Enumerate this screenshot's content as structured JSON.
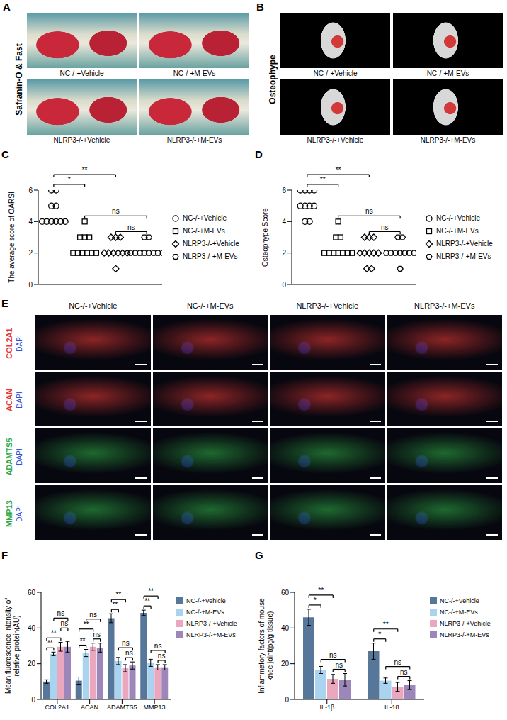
{
  "panels": [
    {
      "panel": "A",
      "title": "Safranin-O & Fast",
      "labels": [
        "NC-/-+Vehicle",
        "NC-/-+M-EVs",
        "NLRP3-/-+Vehicle",
        "NLRP3-/-+M-EVs"
      ]
    },
    {
      "panel": "B",
      "title": "Osteophype",
      "labels": [
        "NC-/-+Vehicle",
        "NC-/-+M-EVs",
        "NLRP3-/-+Vehicle",
        "NLRP3-/-+M-EVs"
      ]
    },
    {
      "panel": "E",
      "columns": [
        "NC-/-+Vehicle",
        "NC-/-+M-EVs",
        "NLRP3-/-+Vehicle",
        "NLRP3-/-+M-EVs"
      ],
      "row_sublabel": "DAPI",
      "rows": [
        {
          "label": "COL2A1",
          "color": "#e53935"
        },
        {
          "label": "ACAN",
          "color": "#e53935"
        },
        {
          "label": "ADAMTS5",
          "color": "#2eaa44"
        },
        {
          "label": "MMP13",
          "color": "#2eaa44"
        }
      ]
    }
  ],
  "chart_data": [
    {
      "panel": "C",
      "type": "scatter",
      "y_label": "The average score of OARSI",
      "ylim": [
        0,
        6
      ],
      "yticks": [
        0,
        2,
        4,
        6
      ],
      "tick_labels": "y",
      "legend": "right",
      "series": [
        {
          "name": "NC-/-+Vehicle",
          "marker": "circle",
          "color": "#000000",
          "values": [
            6,
            6,
            5,
            5,
            4,
            4,
            4,
            4,
            4,
            4
          ]
        },
        {
          "name": "NC-/-+M-EVs",
          "marker": "square",
          "color": "#000000",
          "values": [
            4,
            3,
            3,
            3,
            2,
            2,
            2,
            2,
            2,
            2
          ]
        },
        {
          "name": "NLRP3-/-+Vehicle",
          "marker": "diamond",
          "color": "#000000",
          "values": [
            3,
            3,
            3,
            2,
            2,
            2,
            2,
            2,
            2,
            1
          ]
        },
        {
          "name": "NLRP3-/-+M-EVs",
          "marker": "hexagon",
          "color": "#000000",
          "values": [
            3,
            3,
            2,
            2,
            2,
            2,
            2,
            2,
            2,
            2
          ]
        }
      ],
      "annotations": [
        {
          "text": "*",
          "between": [
            "NC-/-+Vehicle",
            "NC-/-+M-EVs"
          ]
        },
        {
          "text": "**",
          "between": [
            "NC-/-+Vehicle",
            "NLRP3-/-+Vehicle"
          ]
        },
        {
          "text": "ns",
          "between": [
            "NC-/-+M-EVs",
            "NLRP3-/-+M-EVs"
          ]
        },
        {
          "text": "ns",
          "between": [
            "NLRP3-/-+Vehicle",
            "NLRP3-/-+M-EVs"
          ]
        }
      ]
    },
    {
      "panel": "D",
      "type": "scatter",
      "y_label": "Osteophype Score",
      "ylim": [
        0,
        6
      ],
      "yticks": [
        0,
        2,
        4,
        6
      ],
      "tick_labels": "y",
      "legend": "right",
      "series": [
        {
          "name": "NC-/-+Vehicle",
          "marker": "circle",
          "color": "#000000",
          "values": [
            6,
            6,
            6,
            6,
            5,
            5,
            5,
            5,
            4,
            4
          ]
        },
        {
          "name": "NC-/-+M-EVs",
          "marker": "square",
          "color": "#000000",
          "values": [
            4,
            3,
            3,
            2,
            2,
            2,
            2,
            2,
            2,
            2
          ]
        },
        {
          "name": "NLRP3-/-+Vehicle",
          "marker": "diamond",
          "color": "#000000",
          "values": [
            3,
            3,
            3,
            2,
            2,
            2,
            2,
            2,
            1,
            1
          ]
        },
        {
          "name": "NLRP3-/-+M-EVs",
          "marker": "hexagon",
          "color": "#000000",
          "values": [
            3,
            3,
            2,
            2,
            2,
            2,
            2,
            2,
            2,
            1
          ]
        }
      ],
      "annotations": [
        {
          "text": "**",
          "between": [
            "NC-/-+Vehicle",
            "NC-/-+M-EVs"
          ]
        },
        {
          "text": "**",
          "between": [
            "NC-/-+Vehicle",
            "NLRP3-/-+Vehicle"
          ]
        },
        {
          "text": "ns",
          "between": [
            "NC-/-+M-EVs",
            "NLRP3-/-+M-EVs"
          ]
        },
        {
          "text": "ns",
          "between": [
            "NLRP3-/-+Vehicle",
            "NLRP3-/-+M-EVs"
          ]
        }
      ]
    },
    {
      "panel": "F",
      "type": "bar",
      "y_label": "Mean fluorescence intensity of relative protein(AU)",
      "categories": [
        "COL2A1",
        "ACAN",
        "ADAMTS5",
        "MMP13"
      ],
      "ylim": [
        0,
        60
      ],
      "yticks": [
        0,
        20,
        40,
        60
      ],
      "legend": "right",
      "series": [
        {
          "name": "NC-/-+Vehicle",
          "color": "#56779a",
          "values": [
            10,
            10.5,
            45.5,
            48.5
          ],
          "errors": [
            1,
            2,
            2.5,
            1.5
          ]
        },
        {
          "name": "NC-/-+M-EVs",
          "color": "#a9d3ee",
          "values": [
            25.5,
            26,
            21.5,
            20.5
          ],
          "errors": [
            1,
            2,
            2,
            2
          ]
        },
        {
          "name": "NLRP3-/-+Vehicle",
          "color": "#eaa7bd",
          "values": [
            29.5,
            29.5,
            17.5,
            18
          ],
          "errors": [
            2.5,
            2,
            2,
            1.5
          ]
        },
        {
          "name": "NLRP3-/-+M-EVs",
          "color": "#9d87ba",
          "values": [
            29.5,
            29,
            19,
            18
          ],
          "errors": [
            3,
            2.5,
            2,
            1.5
          ]
        }
      ],
      "annotations": [
        {
          "category": "COL2A1",
          "text": "**",
          "between": [
            "NC-/-+Vehicle",
            "NC-/-+M-EVs"
          ]
        },
        {
          "category": "COL2A1",
          "text": "**",
          "between": [
            "NC-/-+Vehicle",
            "NLRP3-/-+Vehicle"
          ]
        },
        {
          "category": "COL2A1",
          "text": "ns",
          "between": [
            "NC-/-+M-EVs",
            "NLRP3-/-+M-EVs"
          ]
        },
        {
          "category": "COL2A1",
          "text": "ns",
          "between": [
            "NLRP3-/-+Vehicle",
            "NLRP3-/-+M-EVs"
          ]
        },
        {
          "category": "ACAN",
          "text": "**",
          "between": [
            "NC-/-+Vehicle",
            "NC-/-+M-EVs"
          ]
        },
        {
          "category": "ACAN",
          "text": "**",
          "between": [
            "NC-/-+Vehicle",
            "NLRP3-/-+Vehicle"
          ]
        },
        {
          "category": "ACAN",
          "text": "ns",
          "between": [
            "NC-/-+M-EVs",
            "NLRP3-/-+M-EVs"
          ]
        },
        {
          "category": "ACAN",
          "text": "ns",
          "between": [
            "NLRP3-/-+Vehicle",
            "NLRP3-/-+M-EVs"
          ]
        },
        {
          "category": "ADAMTS5",
          "text": "**",
          "between": [
            "NC-/-+Vehicle",
            "NC-/-+M-EVs"
          ]
        },
        {
          "category": "ADAMTS5",
          "text": "**",
          "between": [
            "NC-/-+Vehicle",
            "NLRP3-/-+Vehicle"
          ]
        },
        {
          "category": "ADAMTS5",
          "text": "ns",
          "between": [
            "NC-/-+M-EVs",
            "NLRP3-/-+M-EVs"
          ]
        },
        {
          "category": "ADAMTS5",
          "text": "ns",
          "between": [
            "NLRP3-/-+Vehicle",
            "NLRP3-/-+M-EVs"
          ]
        },
        {
          "category": "MMP13",
          "text": "**",
          "between": [
            "NC-/-+Vehicle",
            "NC-/-+M-EVs"
          ]
        },
        {
          "category": "MMP13",
          "text": "**",
          "between": [
            "NC-/-+Vehicle",
            "NLRP3-/-+Vehicle"
          ]
        },
        {
          "category": "MMP13",
          "text": "ns",
          "between": [
            "NC-/-+M-EVs",
            "NLRP3-/-+M-EVs"
          ]
        },
        {
          "category": "MMP13",
          "text": "ns",
          "between": [
            "NLRP3-/-+Vehicle",
            "NLRP3-/-+M-EVs"
          ]
        }
      ]
    },
    {
      "panel": "G",
      "type": "bar",
      "y_label": "Inflammatory factors of mouse knee joint(pg/g tissue)",
      "categories": [
        "IL-1β",
        "IL-18"
      ],
      "ylim": [
        0,
        60
      ],
      "yticks": [
        0,
        20,
        40,
        60
      ],
      "legend": "right",
      "series": [
        {
          "name": "NC-/-+Vehicle",
          "color": "#56779a",
          "values": [
            46,
            27
          ],
          "errors": [
            4.5,
            4.5
          ]
        },
        {
          "name": "NC-/-+M-EVs",
          "color": "#a9d3ee",
          "values": [
            16.5,
            10.5
          ],
          "errors": [
            2,
            1.5
          ]
        },
        {
          "name": "NLRP3-/-+Vehicle",
          "color": "#eaa7bd",
          "values": [
            11.5,
            7
          ],
          "errors": [
            2.5,
            2.5
          ]
        },
        {
          "name": "NLRP3-/-+M-EVs",
          "color": "#9d87ba",
          "values": [
            11,
            8
          ],
          "errors": [
            3.5,
            2.5
          ]
        }
      ],
      "annotations": [
        {
          "category": "IL-1β",
          "text": "*",
          "between": [
            "NC-/-+Vehicle",
            "NC-/-+M-EVs"
          ]
        },
        {
          "category": "IL-1β",
          "text": "**",
          "between": [
            "NC-/-+Vehicle",
            "NLRP3-/-+Vehicle"
          ]
        },
        {
          "category": "IL-1β",
          "text": "ns",
          "between": [
            "NC-/-+M-EVs",
            "NLRP3-/-+M-EVs"
          ]
        },
        {
          "category": "IL-1β",
          "text": "ns",
          "between": [
            "NLRP3-/-+Vehicle",
            "NLRP3-/-+M-EVs"
          ]
        },
        {
          "category": "IL-18",
          "text": "*",
          "between": [
            "NC-/-+Vehicle",
            "NC-/-+M-EVs"
          ]
        },
        {
          "category": "IL-18",
          "text": "**",
          "between": [
            "NC-/-+Vehicle",
            "NLRP3-/-+Vehicle"
          ]
        },
        {
          "category": "IL-18",
          "text": "ns",
          "between": [
            "NC-/-+M-EVs",
            "NLRP3-/-+M-EVs"
          ]
        },
        {
          "category": "IL-18",
          "text": "ns",
          "between": [
            "NLRP3-/-+Vehicle",
            "NLRP3-/-+M-EVs"
          ]
        }
      ]
    }
  ]
}
